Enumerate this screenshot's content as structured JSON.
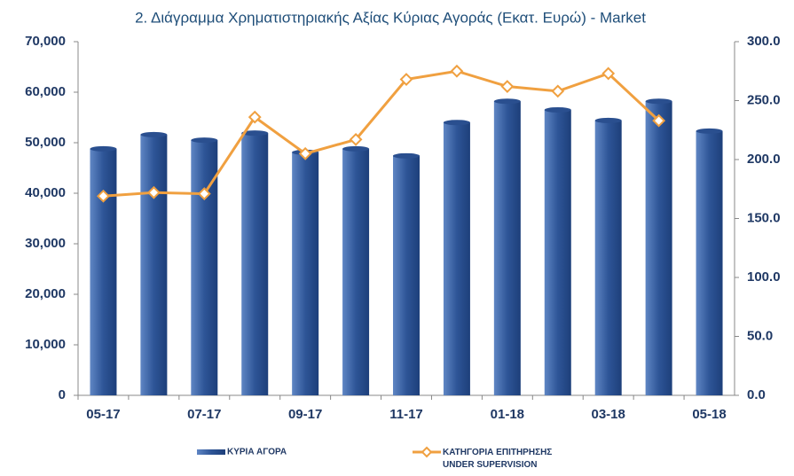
{
  "chart_data": {
    "type": "bar-line",
    "title": "2. Διάγραμμα Χρηματιστηριακής Αξίας Κύριας Αγοράς (Εκατ. Ευρώ) - Market",
    "categories": [
      "05-17",
      null,
      "07-17",
      null,
      "09-17",
      null,
      "11-17",
      null,
      "01-18",
      null,
      "03-18",
      null,
      "05-18"
    ],
    "series": [
      {
        "name": "ΚΥΡΙΑ ΑΓΟΡΑ",
        "type": "bar",
        "color": "#2e5597",
        "values": [
          48800,
          51600,
          50500,
          51900,
          48100,
          48800,
          47400,
          54000,
          58200,
          56500,
          54400,
          58200,
          52300
        ]
      },
      {
        "name": "ΚΑΤΗΓΟΡΙΑ ΕΠΙΤΗΡΗΣΗΣ\nUNDER SUPERVISION",
        "type": "line",
        "axis": "y2",
        "color": "#f0a040",
        "values": [
          169,
          172,
          171,
          236,
          205,
          217,
          268,
          275,
          262,
          258,
          273,
          233,
          null
        ]
      }
    ],
    "ylim": [
      0,
      70000
    ],
    "yticks": [
      0,
      {
        "value": 10000,
        "label": "10,000"
      },
      {
        "value": 20000,
        "label": "20,000"
      },
      {
        "value": 30000,
        "label": "30,000"
      },
      {
        "value": 40000,
        "label": "40,000"
      },
      {
        "value": 50000,
        "label": "50,000"
      },
      {
        "value": 60000,
        "label": "60,000"
      },
      {
        "value": 70000,
        "label": "70,000"
      }
    ],
    "y2lim": [
      0,
      300
    ],
    "y2ticks": [
      {
        "value": 0,
        "label": "0.0"
      },
      {
        "value": 50,
        "label": "50.0"
      },
      {
        "value": 100,
        "label": "100.0"
      },
      {
        "value": 150,
        "label": "150.0"
      },
      {
        "value": 200,
        "label": "200.0"
      },
      {
        "value": 250,
        "label": "250.0"
      },
      {
        "value": 300,
        "label": "300.0"
      }
    ],
    "grid": false
  }
}
